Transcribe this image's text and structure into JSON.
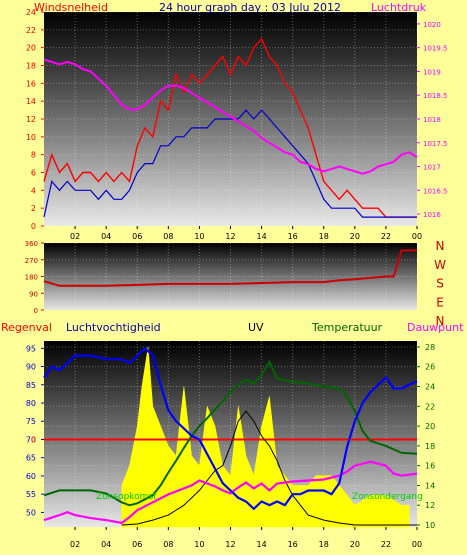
{
  "header": {
    "left_label": "Windsnelheid",
    "title": "24 hour graph day : 03 Julu 2012",
    "right_label": "Luchtdruk"
  },
  "bottom_labels": {
    "regenval": "Regenval",
    "luchtvochtigheid": "Luchtvochtigheid",
    "uv": "UV",
    "temperatuur": "Temperatuur",
    "dauwpunt": "Dauwpunt",
    "zonsopkomst": "Zonsopkomst",
    "zonsondergang": "Zonsondergang"
  },
  "colors": {
    "background": "#ffff99",
    "wind_gust": "#ff0000",
    "wind_avg": "#0000cc",
    "pressure": "#ff00ff",
    "direction": "#cc0000",
    "humidity": "#0000ff",
    "temperature": "#006600",
    "dewpoint": "#ff00ff",
    "uv": "#ffff00",
    "solar": "#000000",
    "rain": "#ff0000"
  },
  "chart_data": [
    {
      "type": "line",
      "name": "wind-pressure",
      "x_ticks": [
        "02",
        "04",
        "06",
        "08",
        "10",
        "12",
        "14",
        "16",
        "18",
        "20",
        "22",
        "00"
      ],
      "y_left_ticks": [
        0,
        2,
        4,
        6,
        8,
        10,
        12,
        14,
        16,
        18,
        20,
        22,
        24
      ],
      "ylim_left": [
        0,
        24
      ],
      "y_right_ticks": [
        "1016",
        "1016.5",
        "1017",
        "1017.5",
        "1018",
        "1018.5",
        "1019",
        "1019.5",
        "1020"
      ],
      "ylim_right": [
        1015.75,
        1020.25
      ],
      "series": [
        {
          "key": "gust",
          "x": [
            0,
            0.5,
            1,
            1.5,
            2,
            2.5,
            3,
            3.5,
            4,
            4.5,
            5,
            5.5,
            6,
            6.5,
            7,
            7.5,
            8,
            8.5,
            9,
            9.5,
            10,
            10.5,
            11,
            11.5,
            12,
            12.5,
            13,
            13.5,
            14,
            14.5,
            15,
            15.5,
            16,
            16.5,
            17,
            17.5,
            18,
            18.5,
            19,
            19.5,
            20,
            20.5,
            21,
            21.5,
            22,
            22.5,
            23,
            23.5,
            24
          ],
          "y": [
            5,
            8,
            6,
            7,
            5,
            6,
            6,
            5,
            6,
            5,
            6,
            5,
            9,
            11,
            10,
            14,
            13,
            17,
            15,
            17,
            16,
            17,
            18,
            19,
            17,
            19,
            18,
            20,
            21,
            19,
            18,
            16,
            15,
            13,
            11,
            8,
            5,
            4,
            3,
            4,
            3,
            2,
            2,
            2,
            1,
            1,
            1,
            1,
            1
          ]
        },
        {
          "key": "avg",
          "x": [
            0,
            0.5,
            1,
            1.5,
            2,
            2.5,
            3,
            3.5,
            4,
            4.5,
            5,
            5.5,
            6,
            6.5,
            7,
            7.5,
            8,
            8.5,
            9,
            9.5,
            10,
            10.5,
            11,
            11.5,
            12,
            12.5,
            13,
            13.5,
            14,
            14.5,
            15,
            15.5,
            16,
            16.5,
            17,
            17.5,
            18,
            18.5,
            19,
            19.5,
            20,
            20.5,
            21,
            21.5,
            22,
            22.5,
            23,
            23.5,
            24
          ],
          "y": [
            1,
            5,
            4,
            5,
            4,
            4,
            4,
            3,
            4,
            3,
            3,
            4,
            6,
            7,
            7,
            9,
            9,
            10,
            10,
            11,
            11,
            11,
            12,
            12,
            12,
            12,
            13,
            12,
            13,
            12,
            11,
            10,
            9,
            8,
            7,
            5,
            3,
            2,
            2,
            2,
            2,
            1,
            1,
            1,
            1,
            1,
            1,
            1,
            1
          ]
        },
        {
          "key": "pressure",
          "x": [
            0,
            0.5,
            1,
            1.5,
            2,
            2.5,
            3,
            3.5,
            4,
            4.5,
            5,
            5.5,
            6,
            6.5,
            7,
            7.5,
            8,
            8.5,
            9,
            9.5,
            10,
            10.5,
            11,
            11.5,
            12,
            12.5,
            13,
            13.5,
            14,
            14.5,
            15,
            15.5,
            16,
            16.5,
            17,
            17.5,
            18,
            18.5,
            19,
            19.5,
            20,
            20.5,
            21,
            21.5,
            22,
            22.5,
            23,
            23.5,
            24
          ],
          "y": [
            1019.25,
            1019.2,
            1019.15,
            1019.2,
            1019.15,
            1019.05,
            1019.0,
            1018.85,
            1018.7,
            1018.5,
            1018.3,
            1018.2,
            1018.2,
            1018.3,
            1018.45,
            1018.6,
            1018.7,
            1018.7,
            1018.65,
            1018.55,
            1018.45,
            1018.35,
            1018.25,
            1018.15,
            1018.05,
            1017.95,
            1017.85,
            1017.75,
            1017.6,
            1017.5,
            1017.4,
            1017.3,
            1017.25,
            1017.1,
            1017.05,
            1016.95,
            1016.9,
            1016.95,
            1017.0,
            1016.95,
            1016.9,
            1016.85,
            1016.9,
            1017.0,
            1017.05,
            1017.1,
            1017.25,
            1017.3,
            1017.2
          ]
        }
      ]
    },
    {
      "type": "line",
      "name": "wind-direction",
      "right_labels": [
        "N",
        "W",
        "S",
        "E",
        "N"
      ],
      "y_ticks": [
        0,
        90,
        180,
        270,
        360
      ],
      "ylim": [
        0,
        360
      ],
      "series": [
        {
          "key": "direction",
          "x": [
            0,
            1,
            2,
            4,
            6,
            8,
            10,
            12,
            14,
            16,
            18,
            19,
            20,
            22,
            22.5,
            23,
            24
          ],
          "y": [
            155,
            130,
            130,
            130,
            135,
            140,
            140,
            140,
            145,
            150,
            150,
            160,
            165,
            180,
            180,
            320,
            320
          ]
        }
      ]
    },
    {
      "type": "line",
      "name": "humidity-temp-uv",
      "x_ticks": [
        "02",
        "04",
        "06",
        "08",
        "10",
        "12",
        "14",
        "16",
        "18",
        "20",
        "22",
        "00"
      ],
      "y_left_ticks": [
        50,
        55,
        60,
        65,
        70,
        75,
        80,
        85,
        90,
        95
      ],
      "ylim_left": [
        46,
        97
      ],
      "y_right_ticks": [
        10,
        12,
        14,
        16,
        18,
        20,
        22,
        24,
        26,
        28
      ],
      "ylim_right": [
        9.8,
        28.6
      ],
      "rain_label": "0",
      "series": [
        {
          "key": "humidity",
          "x": [
            0,
            0.5,
            1,
            2,
            3,
            4,
            5,
            5.5,
            6,
            6.5,
            7,
            7.5,
            8,
            8.5,
            9,
            9.5,
            10,
            10.5,
            11,
            11.5,
            12,
            12.5,
            13,
            13.5,
            14,
            14.5,
            15,
            15.5,
            16,
            16.5,
            17,
            17.5,
            18,
            18.5,
            19,
            19.5,
            20,
            20.5,
            21,
            21.5,
            22,
            22.5,
            23,
            23.5,
            24
          ],
          "y": [
            87,
            90,
            89,
            93,
            93,
            92,
            92,
            91,
            93,
            95,
            93,
            85,
            78,
            75,
            73,
            71,
            70,
            66,
            62,
            58,
            56,
            54,
            53,
            51,
            53,
            52,
            53,
            52,
            55,
            55,
            56,
            56,
            56,
            55,
            58,
            68,
            75,
            80,
            83,
            85,
            87,
            84,
            84,
            85,
            86
          ]
        },
        {
          "key": "temperature",
          "x": [
            0,
            1,
            2,
            3,
            4,
            5,
            5.5,
            6,
            7,
            7.5,
            8,
            8.5,
            9,
            9.5,
            10,
            10.5,
            11,
            11.5,
            12,
            12.5,
            13,
            13.5,
            14,
            14.5,
            15,
            16,
            17,
            18,
            19,
            19.5,
            20,
            20.5,
            21,
            22,
            23,
            24
          ],
          "y": [
            13,
            13.5,
            13.5,
            13.5,
            13.2,
            12.3,
            12,
            12.2,
            13,
            14,
            15.3,
            16.5,
            17.8,
            19,
            20,
            20.8,
            21.7,
            22.5,
            23.5,
            24.2,
            24.7,
            24.3,
            25.2,
            26.5,
            24.8,
            24.5,
            24.3,
            24,
            23.8,
            23,
            21.5,
            19.5,
            18.5,
            18,
            17.3,
            17.2
          ]
        },
        {
          "key": "dewpoint",
          "x": [
            0,
            1,
            1.5,
            2,
            3,
            4,
            5,
            5.5,
            6,
            7,
            8,
            9,
            9.5,
            10,
            10.5,
            11,
            11.5,
            12,
            12.5,
            13,
            13.5,
            14,
            14.5,
            15,
            16,
            17,
            18,
            19,
            19.5,
            20,
            21,
            22,
            22.5,
            23,
            24
          ],
          "y": [
            10.5,
            11,
            11.3,
            11,
            10.7,
            10.5,
            10.2,
            10.8,
            11.5,
            12.3,
            13.1,
            13.7,
            14,
            14.5,
            14.2,
            13.9,
            13.5,
            13.2,
            13.8,
            14.3,
            13.7,
            14.2,
            13.5,
            14.2,
            14.4,
            14.5,
            14.6,
            15,
            15.4,
            16,
            16.4,
            16,
            15.2,
            15,
            15.2
          ]
        },
        {
          "key": "uv",
          "x": [
            5,
            5.5,
            6,
            6.3,
            6.7,
            7,
            7.5,
            8,
            8.5,
            9,
            9.5,
            10,
            10.5,
            11,
            11.5,
            12,
            12.5,
            13,
            13.5,
            14,
            14.5,
            15,
            15.5,
            16,
            16.5,
            17,
            17.5,
            18,
            18.5,
            19,
            19.5,
            20,
            21,
            22,
            23,
            23.5
          ],
          "y": [
            14,
            16,
            20,
            24,
            28,
            22,
            20,
            18,
            17,
            24,
            17,
            16,
            22,
            20,
            16,
            15,
            22,
            17,
            15,
            20,
            23,
            16,
            15,
            14,
            14,
            14,
            15,
            15,
            15,
            14,
            13,
            12,
            13,
            13,
            12,
            12
          ]
        },
        {
          "key": "solar",
          "x": [
            5,
            6,
            7,
            8,
            9,
            10,
            10.5,
            11,
            11.5,
            12,
            12.5,
            13,
            13.5,
            14,
            14.5,
            15,
            15.5,
            16,
            16.5,
            17,
            18,
            19,
            20,
            24
          ],
          "y": [
            10,
            10.1,
            10.5,
            11,
            12,
            13.5,
            14.5,
            15.5,
            16,
            18,
            20.5,
            21.5,
            20.5,
            19,
            18,
            16.5,
            14.5,
            13,
            12,
            11,
            10.5,
            10.2,
            10,
            10
          ]
        }
      ]
    }
  ]
}
